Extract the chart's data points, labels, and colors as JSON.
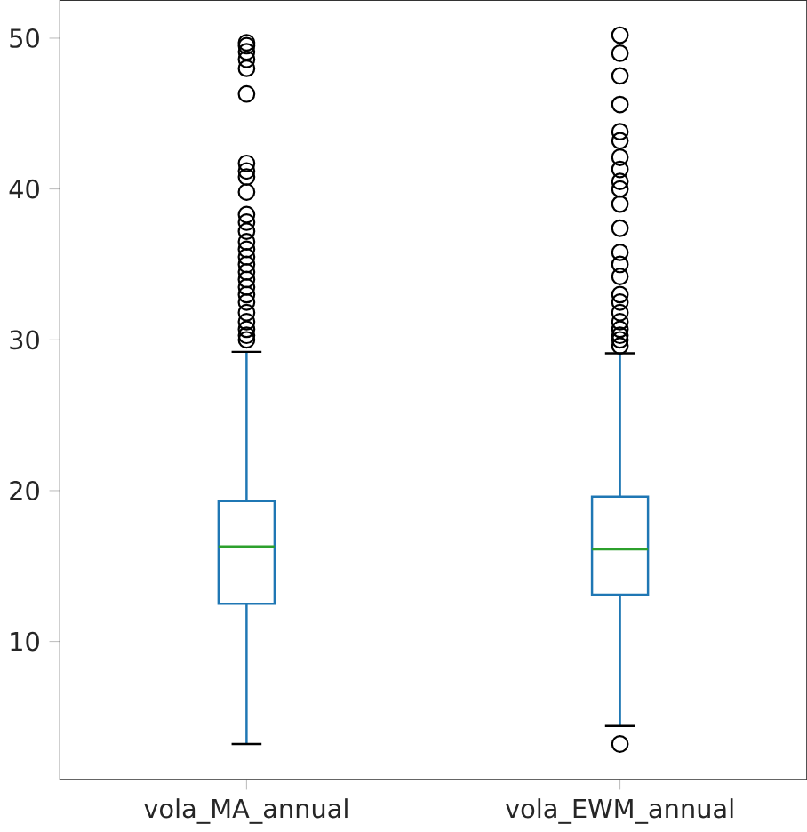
{
  "chart_data": {
    "type": "box",
    "categories": [
      "vola_MA_annual",
      "vola_EWM_annual"
    ],
    "color": "#1f77b4",
    "boxes": [
      {
        "low": 3.2,
        "q1": 12.5,
        "median": 16.3,
        "q3": 19.3,
        "high": 29.2,
        "outliers": [
          30.0,
          30.3,
          30.7,
          31.2,
          31.8,
          32.5,
          33.0,
          33.5,
          34.0,
          34.5,
          35.0,
          35.5,
          36.0,
          36.5,
          37.2,
          37.8,
          38.3,
          39.8,
          40.8,
          41.2,
          41.7,
          46.3,
          48.0,
          48.6,
          49.1,
          49.5,
          49.7
        ]
      },
      {
        "low": 4.4,
        "q1": 13.1,
        "median": 16.1,
        "q3": 19.6,
        "high": 29.1,
        "outliers": [
          3.2,
          29.6,
          30.0,
          30.3,
          30.7,
          31.2,
          31.8,
          32.5,
          33.0,
          34.2,
          35.0,
          35.8,
          37.4,
          39.0,
          40.0,
          40.5,
          41.3,
          42.1,
          43.2,
          43.8,
          45.6,
          47.5,
          49.0,
          50.2
        ]
      }
    ],
    "ylim": [
      0.86,
      52.5
    ],
    "yticks": [
      10,
      20,
      30,
      40,
      50
    ],
    "grid": false
  }
}
